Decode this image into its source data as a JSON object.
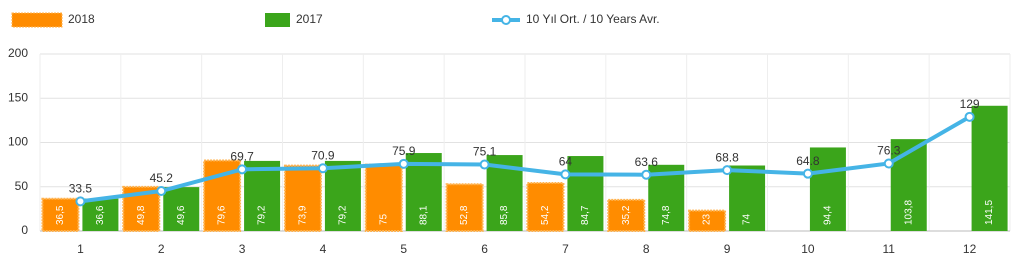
{
  "chart_data": {
    "type": "bar",
    "categories": [
      "1",
      "2",
      "3",
      "4",
      "5",
      "6",
      "7",
      "8",
      "9",
      "10",
      "11",
      "12"
    ],
    "series": [
      {
        "name": "2018",
        "color": "#ff8c00",
        "values": [
          36.5,
          49.8,
          79.6,
          73.9,
          75,
          52.8,
          54.2,
          35.2,
          23,
          null,
          null,
          null
        ],
        "value_labels": [
          "36,5",
          "49,8",
          "79,6",
          "73,9",
          "75",
          "52,8",
          "54,2",
          "35,2",
          "23",
          null,
          null,
          null
        ]
      },
      {
        "name": "2017",
        "color": "#3ba51b",
        "values": [
          36.6,
          49.6,
          79.2,
          79.2,
          88.1,
          85.8,
          84.7,
          74.8,
          74,
          94.4,
          103.8,
          141.5
        ],
        "value_labels": [
          "36,6",
          "49,6",
          "79,2",
          "79,2",
          "88,1",
          "85,8",
          "84,7",
          "74,8",
          "74",
          "94,4",
          "103,8",
          "141,5"
        ]
      },
      {
        "name": "10 Yıl Ort. / 10 Years Avr.",
        "type": "line",
        "color": "#45b4e6",
        "values": [
          33.5,
          45.2,
          69.7,
          70.9,
          75.9,
          75.1,
          64,
          63.6,
          68.8,
          64.8,
          76.3,
          129
        ]
      }
    ],
    "ylim": [
      0,
      200
    ],
    "yticks": [
      0,
      50,
      100,
      150,
      200
    ],
    "grid": true
  }
}
